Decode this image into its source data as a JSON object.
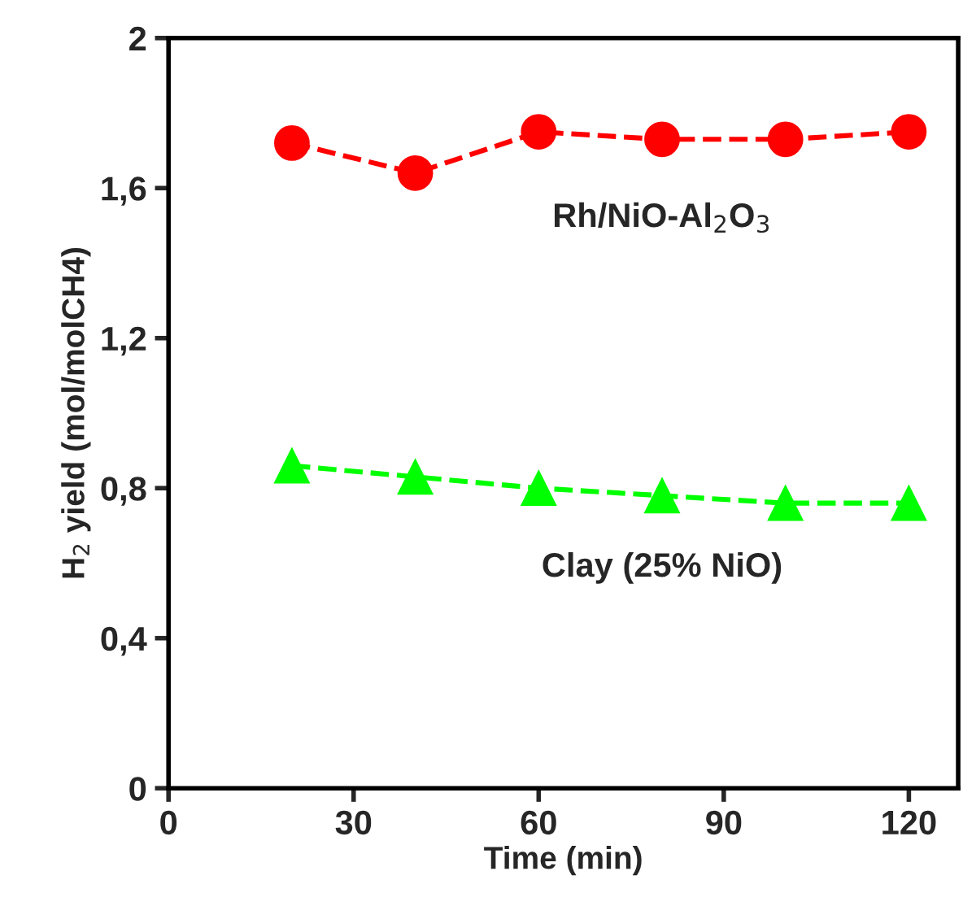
{
  "chart_data": {
    "type": "line",
    "xlabel": "Time (min)",
    "ylabel": "H$_{2}$ yield (mol/molCH4)",
    "x": [
      20,
      40,
      60,
      80,
      100,
      120
    ],
    "series": [
      {
        "name": "Rh/NiO-Al$_{2}$O$_{3}$",
        "color": "#ff0000",
        "marker": "circle",
        "values": [
          1.72,
          1.64,
          1.75,
          1.73,
          1.73,
          1.75
        ]
      },
      {
        "name": "Clay (25% NiO)",
        "color": "#00ff00",
        "marker": "triangle",
        "values": [
          0.86,
          0.83,
          0.8,
          0.78,
          0.76,
          0.76
        ]
      }
    ],
    "xlim": [
      0,
      128
    ],
    "xticks": [
      0,
      30,
      60,
      90,
      120
    ],
    "ylim": [
      0,
      2
    ],
    "yticks": [
      0,
      {
        "value": 0.4,
        "label": "0,4"
      },
      {
        "value": 0.8,
        "label": "0,8"
      },
      {
        "value": 1.2,
        "label": "1,2"
      },
      {
        "value": 1.6,
        "label": "1,6"
      },
      2
    ],
    "line_style": "dashed",
    "grid": false,
    "legend": false
  }
}
